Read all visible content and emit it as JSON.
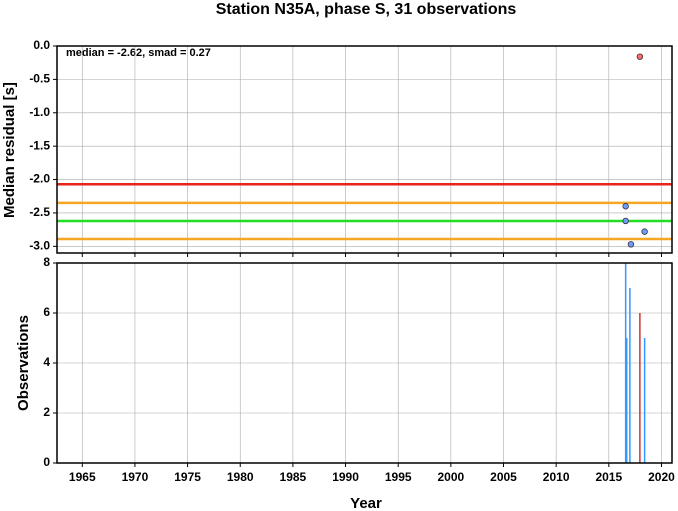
{
  "chart_data": [
    {
      "type": "scatter",
      "title": "Station N35A, phase S, 31 observations",
      "annotation": "median = -2.62, smad = 0.27",
      "ylabel": "Median residual [s]",
      "xlim": [
        1962.6,
        2021
      ],
      "xticks": [
        1965,
        1970,
        1975,
        1980,
        1985,
        1990,
        1995,
        2000,
        2005,
        2010,
        2015,
        2020
      ],
      "ylim": [
        -3.1,
        0
      ],
      "yticks": [
        {
          "value": 0,
          "label": "0.0"
        },
        {
          "value": -0.5,
          "label": "-0.5"
        },
        {
          "value": -1,
          "label": "-1.0"
        },
        {
          "value": -1.5,
          "label": "-1.5"
        },
        {
          "value": -2,
          "label": "-2.0"
        },
        {
          "value": -2.5,
          "label": "-2.5"
        },
        {
          "value": -3,
          "label": "-3.0"
        }
      ],
      "grid": true,
      "lines": [
        {
          "value": -2.07,
          "color": "#e8221c"
        },
        {
          "value": -2.35,
          "color": "#f5a623"
        },
        {
          "value": -2.62,
          "color": "#22dd22"
        },
        {
          "value": -2.89,
          "color": "#f5a623"
        }
      ],
      "series": [
        {
          "color": "#6f9bff",
          "x": [
            2016.6,
            2016.6,
            2017.1,
            2018.4
          ],
          "values": [
            -2.4,
            -2.62,
            -2.97,
            -2.78
          ]
        },
        {
          "color": "#ff6b6b",
          "x": [
            2017.95
          ],
          "values": [
            -0.16
          ]
        }
      ]
    },
    {
      "type": "bar",
      "xlabel": "Year",
      "ylabel": "Observations",
      "xlim": [
        1962.6,
        2021
      ],
      "xticks": [
        1965,
        1970,
        1975,
        1980,
        1985,
        1990,
        1995,
        2000,
        2005,
        2010,
        2015,
        2020
      ],
      "ylim": [
        0,
        8
      ],
      "yticks": [
        0,
        2,
        4,
        6,
        8
      ],
      "grid": true,
      "x": [
        2016.6,
        2016.7,
        2017.0,
        2017.95,
        2018.4
      ],
      "values": [
        8,
        5,
        7,
        6,
        5
      ],
      "colors": [
        "#3399ff",
        "#3399ff",
        "#3399ff",
        "#cc3333",
        "#3399ff"
      ]
    }
  ]
}
